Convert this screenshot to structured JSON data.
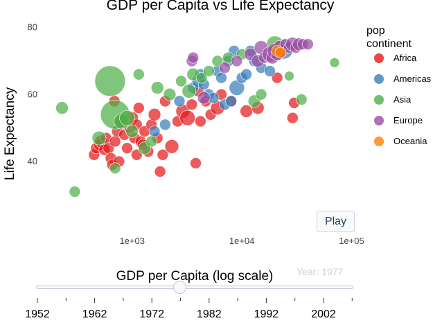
{
  "chart_data": {
    "type": "scatter",
    "title": "GDP per Capita vs Life Expectancy",
    "xlabel": "GDP per Capita (log scale)",
    "ylabel": "Life Expectancy",
    "x_scale": "log",
    "xlim": [
      200,
      120000
    ],
    "ylim": [
      22,
      82
    ],
    "x_ticks": [
      1000,
      10000,
      100000
    ],
    "x_tick_labels": [
      "1e+03",
      "1e+04",
      "1e+05"
    ],
    "y_ticks": [
      40,
      60,
      80
    ],
    "y_tick_labels": [
      "40",
      "60",
      "80"
    ],
    "grid": false,
    "legend_title": "pop\ncontinent",
    "legend_position": "right",
    "series": [
      {
        "name": "Africa",
        "color": "#e41a1c",
        "points": [
          {
            "x": 450,
            "y": 42
          },
          {
            "x": 470,
            "y": 44
          },
          {
            "x": 500,
            "y": 45
          },
          {
            "x": 520,
            "y": 46
          },
          {
            "x": 560,
            "y": 43.5
          },
          {
            "x": 580,
            "y": 47
          },
          {
            "x": 610,
            "y": 44
          },
          {
            "x": 640,
            "y": 41
          },
          {
            "x": 660,
            "y": 39
          },
          {
            "x": 700,
            "y": 46
          },
          {
            "x": 730,
            "y": 49
          },
          {
            "x": 760,
            "y": 40
          },
          {
            "x": 800,
            "y": 52
          },
          {
            "x": 850,
            "y": 48
          },
          {
            "x": 900,
            "y": 44
          },
          {
            "x": 950,
            "y": 50
          },
          {
            "x": 1000,
            "y": 53
          },
          {
            "x": 1050,
            "y": 47
          },
          {
            "x": 1100,
            "y": 51
          },
          {
            "x": 1150,
            "y": 56
          },
          {
            "x": 1200,
            "y": 46
          },
          {
            "x": 1300,
            "y": 49
          },
          {
            "x": 1400,
            "y": 43
          },
          {
            "x": 1500,
            "y": 51
          },
          {
            "x": 1600,
            "y": 54
          },
          {
            "x": 1700,
            "y": 47
          },
          {
            "x": 1800,
            "y": 37
          },
          {
            "x": 1900,
            "y": 42
          },
          {
            "x": 2000,
            "y": 58
          },
          {
            "x": 2300,
            "y": 44.5
          },
          {
            "x": 2600,
            "y": 52
          },
          {
            "x": 2900,
            "y": 55
          },
          {
            "x": 3200,
            "y": 53
          },
          {
            "x": 3500,
            "y": 57
          },
          {
            "x": 3800,
            "y": 39.5
          },
          {
            "x": 4200,
            "y": 52
          },
          {
            "x": 4700,
            "y": 58
          },
          {
            "x": 5200,
            "y": 54
          },
          {
            "x": 6000,
            "y": 56
          },
          {
            "x": 6500,
            "y": 60
          },
          {
            "x": 8000,
            "y": 58
          },
          {
            "x": 11000,
            "y": 55
          },
          {
            "x": 14000,
            "y": 56
          },
          {
            "x": 21000,
            "y": 65
          },
          {
            "x": 30000,
            "y": 57.5
          },
          {
            "x": 29000,
            "y": 53
          },
          {
            "x": 690,
            "y": 58
          },
          {
            "x": 1250,
            "y": 45
          },
          {
            "x": 4000,
            "y": 61
          },
          {
            "x": 1100,
            "y": 42
          }
        ],
        "sizes": [
          8,
          8,
          8,
          9,
          8,
          8,
          8,
          8,
          8,
          8,
          8,
          8,
          9,
          8,
          8,
          8,
          9,
          8,
          8,
          8,
          8,
          8,
          8,
          8,
          9,
          8,
          8,
          8,
          8,
          10,
          8,
          10,
          11,
          8,
          8,
          8,
          8,
          8,
          10,
          8,
          8,
          9,
          9,
          8,
          8,
          8,
          8,
          8,
          8,
          8
        ]
      },
      {
        "name": "Americas",
        "color": "#377eb8",
        "points": [
          {
            "x": 1600,
            "y": 49
          },
          {
            "x": 2000,
            "y": 51
          },
          {
            "x": 2700,
            "y": 58
          },
          {
            "x": 3600,
            "y": 62
          },
          {
            "x": 4000,
            "y": 64
          },
          {
            "x": 4500,
            "y": 63
          },
          {
            "x": 5000,
            "y": 60
          },
          {
            "x": 5500,
            "y": 59
          },
          {
            "x": 6000,
            "y": 67
          },
          {
            "x": 6500,
            "y": 65
          },
          {
            "x": 7000,
            "y": 57
          },
          {
            "x": 7500,
            "y": 70
          },
          {
            "x": 8000,
            "y": 58
          },
          {
            "x": 9000,
            "y": 62
          },
          {
            "x": 10000,
            "y": 65
          },
          {
            "x": 11000,
            "y": 66
          },
          {
            "x": 12000,
            "y": 73
          },
          {
            "x": 13000,
            "y": 70
          },
          {
            "x": 15000,
            "y": 68
          },
          {
            "x": 18000,
            "y": 67
          },
          {
            "x": 22000,
            "y": 72
          },
          {
            "x": 24000,
            "y": 73.5
          },
          {
            "x": 8500,
            "y": 73
          },
          {
            "x": 4200,
            "y": 66
          }
        ],
        "sizes": [
          8,
          8,
          8,
          8,
          9,
          8,
          8,
          8,
          8,
          8,
          8,
          8,
          8,
          11,
          8,
          8,
          8,
          8,
          8,
          8,
          8,
          14,
          8,
          8
        ]
      },
      {
        "name": "Asia",
        "color": "#4daf4a",
        "points": [
          {
            "x": 230,
            "y": 56
          },
          {
            "x": 300,
            "y": 31
          },
          {
            "x": 500,
            "y": 47
          },
          {
            "x": 630,
            "y": 64
          },
          {
            "x": 700,
            "y": 54
          },
          {
            "x": 800,
            "y": 52
          },
          {
            "x": 900,
            "y": 53
          },
          {
            "x": 1000,
            "y": 49
          },
          {
            "x": 1150,
            "y": 66
          },
          {
            "x": 1300,
            "y": 44
          },
          {
            "x": 1500,
            "y": 46
          },
          {
            "x": 1700,
            "y": 62
          },
          {
            "x": 2200,
            "y": 60
          },
          {
            "x": 2800,
            "y": 64
          },
          {
            "x": 3300,
            "y": 61
          },
          {
            "x": 3600,
            "y": 66
          },
          {
            "x": 4300,
            "y": 65
          },
          {
            "x": 5000,
            "y": 67
          },
          {
            "x": 6000,
            "y": 70
          },
          {
            "x": 7500,
            "y": 71
          },
          {
            "x": 10000,
            "y": 72
          },
          {
            "x": 13000,
            "y": 58
          },
          {
            "x": 15000,
            "y": 60
          },
          {
            "x": 20000,
            "y": 75
          },
          {
            "x": 27000,
            "y": 65.5
          },
          {
            "x": 35000,
            "y": 58.5
          },
          {
            "x": 70000,
            "y": 69.5
          },
          {
            "x": 25000,
            "y": 74
          },
          {
            "x": 700,
            "y": 38
          }
        ],
        "sizes": [
          9,
          8,
          10,
          22,
          21,
          11,
          11,
          9,
          8,
          9,
          8,
          9,
          9,
          8,
          10,
          9,
          8,
          8,
          8,
          8,
          8,
          9,
          8,
          12,
          7,
          8,
          7,
          9,
          8
        ]
      },
      {
        "name": "Europe",
        "color": "#984ea3",
        "points": [
          {
            "x": 3500,
            "y": 70
          },
          {
            "x": 3600,
            "y": 71
          },
          {
            "x": 4500,
            "y": 59
          },
          {
            "x": 7000,
            "y": 68
          },
          {
            "x": 9000,
            "y": 70
          },
          {
            "x": 12000,
            "y": 72
          },
          {
            "x": 14000,
            "y": 70
          },
          {
            "x": 15000,
            "y": 74
          },
          {
            "x": 16000,
            "y": 71
          },
          {
            "x": 18000,
            "y": 72
          },
          {
            "x": 19000,
            "y": 71
          },
          {
            "x": 20000,
            "y": 73
          },
          {
            "x": 21000,
            "y": 72
          },
          {
            "x": 22000,
            "y": 74.5
          },
          {
            "x": 23000,
            "y": 73
          },
          {
            "x": 25000,
            "y": 75
          },
          {
            "x": 27000,
            "y": 74
          },
          {
            "x": 29000,
            "y": 75
          },
          {
            "x": 31000,
            "y": 74
          },
          {
            "x": 33000,
            "y": 75
          },
          {
            "x": 36000,
            "y": 75
          },
          {
            "x": 40000,
            "y": 75
          }
        ],
        "sizes": [
          8,
          8,
          9,
          8,
          8,
          9,
          9,
          10,
          8,
          11,
          9,
          11,
          9,
          8,
          9,
          8,
          8,
          10,
          8,
          9,
          8,
          8
        ]
      },
      {
        "name": "Oceania",
        "color": "#ff7f00",
        "points": [
          {
            "x": 21000,
            "y": 73
          },
          {
            "x": 22500,
            "y": 72.5
          }
        ],
        "sizes": [
          8,
          8
        ]
      }
    ]
  },
  "controls": {
    "play_label": "Play",
    "current_frame_label": "Year: 1977",
    "slider_value": 1977,
    "slider_ticks": [
      "1952",
      "1962",
      "1972",
      "1982",
      "1992",
      "2002"
    ]
  }
}
